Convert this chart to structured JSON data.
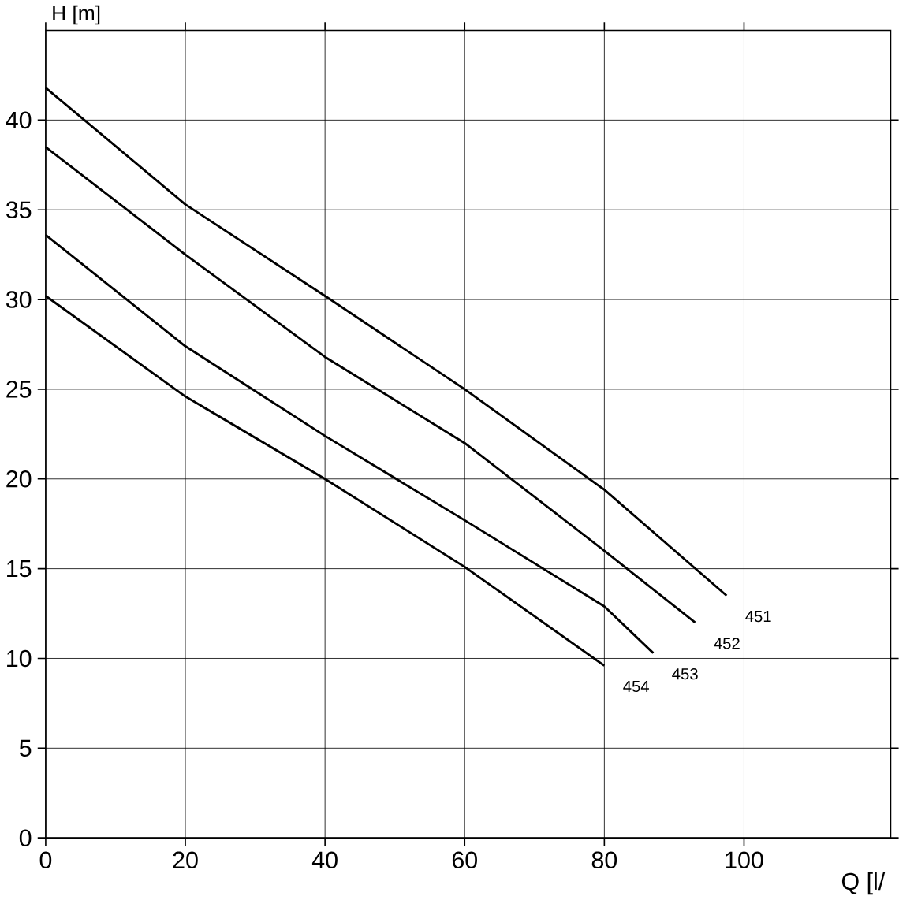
{
  "chart_data": {
    "type": "line",
    "xlabel": "Q  [l/",
    "ylabel": "H [m]",
    "xlim": [
      0,
      121
    ],
    "ylim": [
      0,
      45
    ],
    "xticks": [
      0,
      20,
      40,
      60,
      80,
      100
    ],
    "yticks": [
      0,
      5,
      10,
      15,
      20,
      25,
      30,
      35,
      40
    ],
    "grid": true,
    "marker": "none",
    "line_style": "solid",
    "series": [
      {
        "name": "451",
        "color": "#000000",
        "x": [
          0,
          20,
          40,
          60,
          80,
          97.5
        ],
        "values": [
          41.8,
          35.3,
          30.2,
          25.0,
          19.4,
          13.5
        ]
      },
      {
        "name": "452",
        "color": "#000000",
        "x": [
          0,
          20,
          40,
          60,
          80,
          93
        ],
        "values": [
          38.5,
          32.5,
          26.8,
          22.0,
          16.0,
          12.0
        ]
      },
      {
        "name": "453",
        "color": "#000000",
        "x": [
          0,
          20,
          40,
          60,
          80,
          87
        ],
        "values": [
          33.6,
          27.4,
          22.4,
          17.7,
          12.9,
          10.3
        ]
      },
      {
        "name": "454",
        "color": "#000000",
        "x": [
          0,
          20,
          40,
          60,
          80
        ],
        "values": [
          30.2,
          24.6,
          20.0,
          15.1,
          9.6
        ]
      }
    ]
  }
}
